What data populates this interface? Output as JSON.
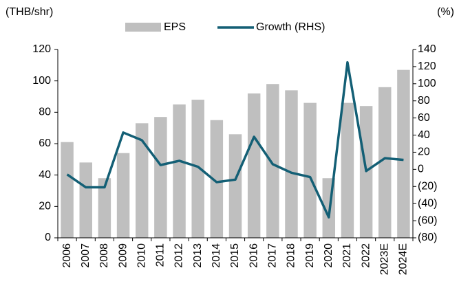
{
  "chart_data": {
    "type": "bar_line",
    "y_label": "(THB/shr)",
    "y2_label": "(%)",
    "categories": [
      "2006",
      "2007",
      "2008",
      "2009",
      "2010",
      "2011",
      "2012",
      "2013",
      "2014",
      "2015",
      "2016",
      "2017",
      "2018",
      "2019",
      "2020",
      "2021",
      "2022",
      "2023E",
      "2024E"
    ],
    "series": [
      {
        "name": "EPS",
        "type": "bar",
        "color": "#bfbfbf",
        "values": [
          61,
          48,
          38,
          54,
          73,
          77,
          85,
          88,
          75,
          66,
          92,
          98,
          94,
          86,
          38,
          86,
          84,
          96,
          107
        ]
      },
      {
        "name": "Growth (RHS)",
        "type": "line",
        "axis": "y2",
        "color": "#135f75",
        "values": [
          -6,
          -21,
          -21,
          43,
          34,
          5,
          10,
          3,
          -15,
          -12,
          38,
          6,
          -4,
          -9,
          -56,
          125,
          -2,
          13,
          11
        ]
      }
    ],
    "ylim": [
      0,
      120
    ],
    "yticks": [
      0,
      20,
      40,
      60,
      80,
      100,
      120
    ],
    "y2lim": [
      -80,
      140
    ],
    "y2ticks": [
      {
        "value": -80,
        "label": "(80)"
      },
      {
        "value": -60,
        "label": "(60)"
      },
      {
        "value": -40,
        "label": "(40)"
      },
      {
        "value": -20,
        "label": "(20)"
      },
      0,
      20,
      40,
      60,
      80,
      100,
      120,
      140
    ],
    "grid": false,
    "legend": "top"
  }
}
